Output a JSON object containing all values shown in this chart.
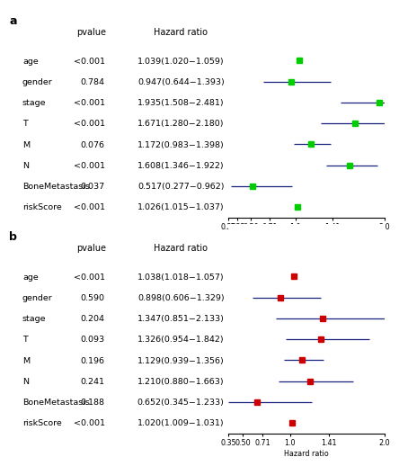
{
  "panel_a": {
    "label": "a",
    "variables": [
      "age",
      "gender",
      "stage",
      "T",
      "M",
      "N",
      "BoneMetastasis",
      "riskScore"
    ],
    "pvalues": [
      "<0.001",
      "0.784",
      "<0.001",
      "<0.001",
      "0.076",
      "<0.001",
      "0.037",
      "<0.001"
    ],
    "hr_labels": [
      "1.039(1.020−1.059)",
      "0.947(0.644−1.393)",
      "1.935(1.508−2.481)",
      "1.671(1.280−2.180)",
      "1.172(0.983−1.398)",
      "1.608(1.346−1.922)",
      "0.517(0.277−0.962)",
      "1.026(1.015−1.037)"
    ],
    "hr": [
      1.039,
      0.947,
      1.935,
      1.671,
      1.172,
      1.608,
      0.517,
      1.026
    ],
    "ci_low": [
      1.02,
      0.644,
      1.508,
      1.28,
      0.983,
      1.346,
      0.277,
      1.015
    ],
    "ci_high": [
      1.059,
      1.393,
      2.481,
      2.18,
      1.398,
      1.922,
      0.962,
      1.037
    ],
    "color": "#00cc00",
    "xlim": [
      0.25,
      2.0
    ],
    "xticks": [
      0.25,
      0.35,
      0.5,
      0.71,
      1.0,
      1.41,
      2.0
    ],
    "xtick_labels": [
      "0.25",
      "0.35",
      "0.50",
      "0.71",
      "1.0",
      "1.41",
      "2.0"
    ]
  },
  "panel_b": {
    "label": "b",
    "variables": [
      "age",
      "gender",
      "stage",
      "T",
      "M",
      "N",
      "BoneMetastasis",
      "riskScore"
    ],
    "pvalues": [
      "<0.001",
      "0.590",
      "0.204",
      "0.093",
      "0.196",
      "0.241",
      "0.188",
      "<0.001"
    ],
    "hr_labels": [
      "1.038(1.018−1.057)",
      "0.898(0.606−1.329)",
      "1.347(0.851−2.133)",
      "1.326(0.954−1.842)",
      "1.129(0.939−1.356)",
      "1.210(0.880−1.663)",
      "0.652(0.345−1.233)",
      "1.020(1.009−1.031)"
    ],
    "hr": [
      1.038,
      0.898,
      1.347,
      1.326,
      1.129,
      1.21,
      0.652,
      1.02
    ],
    "ci_low": [
      1.018,
      0.606,
      0.851,
      0.954,
      0.939,
      0.88,
      0.345,
      1.009
    ],
    "ci_high": [
      1.057,
      1.329,
      2.133,
      1.842,
      1.356,
      1.663,
      1.233,
      1.031
    ],
    "color": "#cc0000",
    "xlim": [
      0.35,
      2.0
    ],
    "xticks": [
      0.35,
      0.5,
      0.71,
      1.0,
      1.41,
      2.0
    ],
    "xtick_labels": [
      "0.35",
      "0.50",
      "0.71",
      "1.0",
      "1.41",
      "2.0"
    ]
  },
  "header_fontsize": 7.0,
  "label_fontsize": 6.8,
  "axis_fontsize": 5.8,
  "panel_label_fontsize": 9,
  "marker_size": 4.5,
  "line_color": "#1a237e",
  "bg_color": "#ffffff"
}
